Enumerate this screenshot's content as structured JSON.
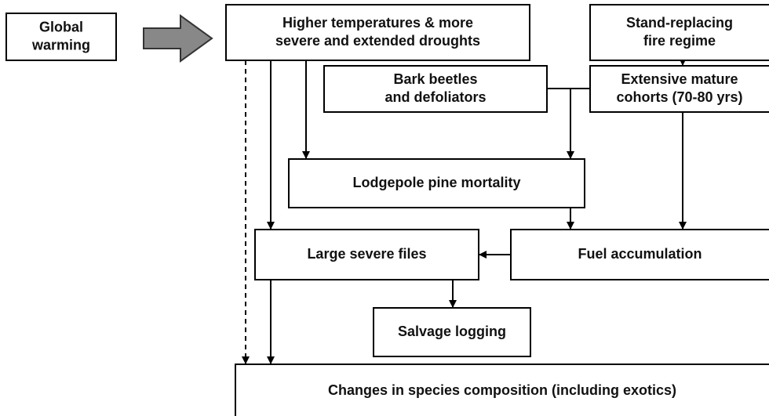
{
  "nodes": [
    {
      "label": [
        "Global",
        "warming"
      ]
    },
    {
      "label": [
        "Higher temperatures & more",
        "severe and extended droughts"
      ]
    },
    {
      "label": [
        "Stand-replacing",
        "fire regime"
      ]
    },
    {
      "label": [
        "Bark beetles",
        "and defoliators"
      ]
    },
    {
      "label": [
        "Extensive mature",
        "cohorts (70-80 yrs)"
      ]
    },
    {
      "label": [
        "Lodgepole pine mortality"
      ]
    },
    {
      "label": [
        "Large severe files"
      ]
    },
    {
      "label": [
        "Fuel accumulation"
      ]
    },
    {
      "label": [
        "Salvage logging"
      ]
    },
    {
      "label": [
        "Changes in species composition (including exotics)"
      ]
    }
  ]
}
